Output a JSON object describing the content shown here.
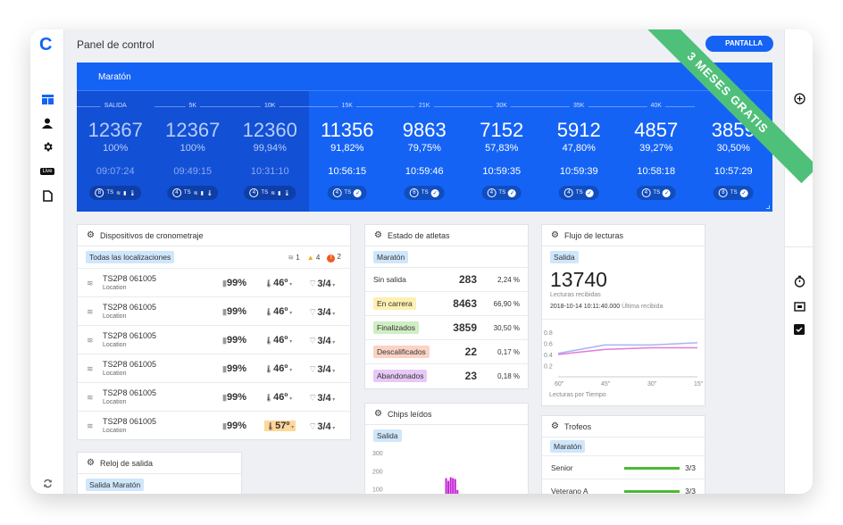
{
  "app": {
    "logo": "C",
    "page_title": "Panel de control",
    "fullscreen_label": "PANTALLA",
    "promo_banner": "3 MESES GRATIS"
  },
  "nav_icons": [
    "dashboard-icon",
    "user-icon",
    "gear-icon",
    "live-icon",
    "document-icon",
    "refresh-icon"
  ],
  "live_label": "Live",
  "right_icons": [
    "plus-circle-icon",
    "stopwatch-icon",
    "screen-icon",
    "checkbox-icon"
  ],
  "race": {
    "name": "Maratón",
    "checkpoints": [
      {
        "label": "SALIDA",
        "count": "12367",
        "pct": "100%",
        "time": "09:07:24",
        "chip_count": "8",
        "past": true
      },
      {
        "label": "5K",
        "count": "12367",
        "pct": "100%",
        "time": "09:49:15",
        "chip_count": "4",
        "past": true
      },
      {
        "label": "10K",
        "count": "12360",
        "pct": "99,94%",
        "time": "10:31:10",
        "chip_count": "4",
        "past": true
      },
      {
        "label": "15K",
        "count": "11356",
        "pct": "91,82%",
        "time": "10:56:15",
        "chip_count": "4",
        "past": false
      },
      {
        "label": "21K",
        "count": "9863",
        "pct": "79,75%",
        "time": "10:59:46",
        "chip_count": "6",
        "past": false
      },
      {
        "label": "30K",
        "count": "7152",
        "pct": "57,83%",
        "time": "10:59:35",
        "chip_count": "4",
        "past": false
      },
      {
        "label": "35K",
        "count": "5912",
        "pct": "47,80%",
        "time": "10:59:39",
        "chip_count": "4",
        "past": false
      },
      {
        "label": "40K",
        "count": "4857",
        "pct": "39,27%",
        "time": "10:58:18",
        "chip_count": "4",
        "past": false
      },
      {
        "label": "",
        "count": "3859",
        "pct": "30,50%",
        "time": "10:57:29",
        "chip_count": "8",
        "past": false
      }
    ],
    "chip_ts": "TS"
  },
  "devices": {
    "title": "Dispositivos de cronometraje",
    "filter": "Todas las localizaciones",
    "alerts": {
      "wifi": "1",
      "warn": "4",
      "error": "2"
    },
    "rows": [
      {
        "name": "TS2P8 061005",
        "loc": "Location",
        "battery": "99%",
        "temp": "46º",
        "signal": "3/4",
        "hot": false
      },
      {
        "name": "TS2P8 061005",
        "loc": "Location",
        "battery": "99%",
        "temp": "46º",
        "signal": "3/4",
        "hot": false
      },
      {
        "name": "TS2P8 061005",
        "loc": "Location",
        "battery": "99%",
        "temp": "46º",
        "signal": "3/4",
        "hot": false
      },
      {
        "name": "TS2P8 061005",
        "loc": "Location",
        "battery": "99%",
        "temp": "46º",
        "signal": "3/4",
        "hot": false
      },
      {
        "name": "TS2P8 061005",
        "loc": "Location",
        "battery": "99%",
        "temp": "46º",
        "signal": "3/4",
        "hot": false
      },
      {
        "name": "TS2P8 061005",
        "loc": "Location",
        "battery": "99%",
        "temp": "57º",
        "signal": "3/4",
        "hot": true
      }
    ]
  },
  "reloj": {
    "title": "Reloj de salida",
    "tag": "Salida Maratón"
  },
  "athletes": {
    "title": "Estado de atletas",
    "tag": "Maratón",
    "rows": [
      {
        "label": "Sin salida",
        "value": "283",
        "pct": "2,24 %",
        "color": "none"
      },
      {
        "label": "En carrera",
        "value": "8463",
        "pct": "66,90 %",
        "color": "yellow"
      },
      {
        "label": "Finalizados",
        "value": "3859",
        "pct": "30,50 %",
        "color": "green"
      },
      {
        "label": "Descalificados",
        "value": "22",
        "pct": "0,17 %",
        "color": "orange"
      },
      {
        "label": "Abandonados",
        "value": "23",
        "pct": "0,18 %",
        "color": "purple"
      }
    ]
  },
  "chips": {
    "title": "Chips leídos",
    "tag": "Salida",
    "y_ticks": [
      "300",
      "200",
      "100"
    ]
  },
  "flow": {
    "title": "Flujo de lecturas",
    "tag": "Salida",
    "big": "13740",
    "big_label": "Lecturas recibidas",
    "last_time": "2018-10-14 10:11:40.000",
    "last_label": "Última recibida",
    "chart_label": "Lecturas por Tiempo"
  },
  "trophies": {
    "title": "Trofeos",
    "tag": "Maratón",
    "rows": [
      {
        "name": "Senior",
        "val": "3/3"
      },
      {
        "name": "Veterano A",
        "val": "3/3"
      }
    ]
  },
  "chart_data": [
    {
      "type": "line",
      "title": "",
      "xlabel": "Lecturas por Tiempo",
      "ylabel": "",
      "x": [
        "60\"",
        "45\"",
        "30\"",
        "15\""
      ],
      "ylim": [
        0,
        0.8
      ],
      "y_ticks": [
        "0.8",
        "0.6",
        "0.4",
        "0.2"
      ],
      "series": [
        {
          "values": [
            0.42,
            0.57,
            0.57,
            0.61
          ],
          "color": "#a8b4f0"
        },
        {
          "values": [
            0.4,
            0.49,
            0.52,
            0.52
          ],
          "color": "#e27ad8"
        }
      ]
    },
    {
      "type": "bar",
      "title": "",
      "y_ticks": [
        "300",
        "200",
        "100"
      ],
      "color": "#c421d6",
      "values": [
        0,
        0,
        0,
        0,
        0,
        0,
        0,
        30,
        0,
        0,
        0,
        50,
        0,
        60,
        0,
        0,
        0,
        0,
        0,
        40,
        55,
        60,
        0,
        0,
        0,
        175,
        160,
        180,
        175,
        170,
        110,
        0,
        0,
        0,
        0,
        0,
        0,
        0,
        0,
        0,
        0,
        0,
        0,
        0,
        0,
        0,
        0,
        0,
        0,
        0,
        0,
        0,
        0,
        0,
        0,
        0,
        0,
        70,
        60
      ]
    }
  ]
}
